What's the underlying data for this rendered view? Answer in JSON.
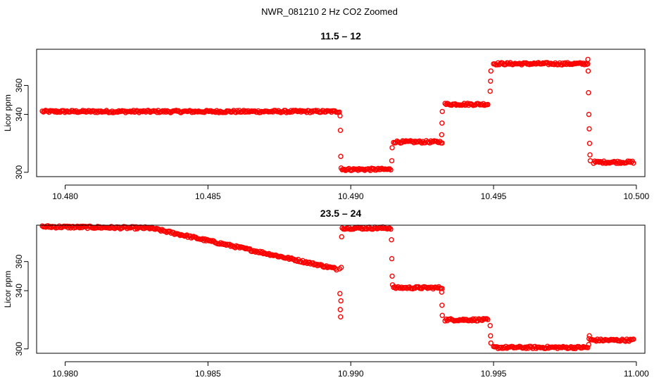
{
  "suptitle": "NWR_081210  2 Hz CO2 Zoomed",
  "colors": {
    "points": "#ff0000",
    "axes": "#000000",
    "background": "#ffffff"
  },
  "chart_data": [
    {
      "type": "scatter",
      "title": "11.5 – 12",
      "ylabel": "Licor ppm",
      "xlim": [
        10.479,
        10.5003
      ],
      "ylim": [
        297,
        385
      ],
      "xticks": [
        10.48,
        10.485,
        10.49,
        10.495,
        10.5
      ],
      "xtick_labels": [
        "10.480",
        "10.485",
        "10.490",
        "10.495",
        "10.500"
      ],
      "yticks": [
        300,
        340,
        360
      ],
      "ytick_labels": [
        "300",
        "340",
        "360"
      ],
      "marker": "open-circle",
      "segments": [
        {
          "x0": 10.4792,
          "x1": 10.4896,
          "y0": 342,
          "y1": 342
        },
        {
          "x0": 10.4897,
          "x1": 10.4914,
          "y0": 302,
          "y1": 302
        },
        {
          "x0": 10.4915,
          "x1": 10.4932,
          "y0": 321,
          "y1": 321
        },
        {
          "x0": 10.4933,
          "x1": 10.4948,
          "y0": 347,
          "y1": 347
        },
        {
          "x0": 10.495,
          "x1": 10.4983,
          "y0": 375,
          "y1": 375
        },
        {
          "x0": 10.4985,
          "x1": 10.4999,
          "y0": 307,
          "y1": 307
        }
      ],
      "transitions": [
        {
          "x": 10.48965,
          "values": [
            339,
            329,
            311,
            303
          ]
        },
        {
          "x": 10.49145,
          "values": [
            308,
            317
          ]
        },
        {
          "x": 10.4932,
          "values": [
            326,
            334,
            342
          ]
        },
        {
          "x": 10.4949,
          "values": [
            356,
            363,
            370
          ]
        },
        {
          "x": 10.49835,
          "values": [
            378,
            370,
            355,
            340,
            330,
            320,
            312,
            308
          ]
        }
      ]
    },
    {
      "type": "scatter",
      "title": "23.5 – 24",
      "ylabel": "Licor ppm",
      "xlim": [
        10.979,
        11.0003
      ],
      "ylim": [
        297,
        385
      ],
      "xticks": [
        10.98,
        10.985,
        10.99,
        10.995,
        11.0
      ],
      "xtick_labels": [
        "10.980",
        "10.985",
        "10.990",
        "10.995",
        "11.000"
      ],
      "yticks": [
        300,
        340,
        360
      ],
      "ytick_labels": [
        "300",
        "340",
        "360"
      ],
      "marker": "open-circle",
      "segments": [
        {
          "x0": 10.9792,
          "x1": 10.983,
          "y0": 384,
          "y1": 383
        },
        {
          "x0": 10.983,
          "x1": 10.9895,
          "y0": 383,
          "y1": 355
        },
        {
          "x0": 10.9897,
          "x1": 10.9914,
          "y0": 383,
          "y1": 383
        },
        {
          "x0": 10.9915,
          "x1": 10.9932,
          "y0": 342,
          "y1": 342
        },
        {
          "x0": 10.9933,
          "x1": 10.9948,
          "y0": 320,
          "y1": 320
        },
        {
          "x0": 10.995,
          "x1": 10.9983,
          "y0": 301,
          "y1": 301
        },
        {
          "x0": 10.9984,
          "x1": 10.9999,
          "y0": 306,
          "y1": 306
        }
      ],
      "transitions": [
        {
          "x": 10.98965,
          "values": [
            355,
            338,
            327,
            322,
            333,
            356,
            377
          ]
        },
        {
          "x": 10.99145,
          "values": [
            375,
            362,
            350,
            344
          ]
        },
        {
          "x": 10.9932,
          "values": [
            339,
            330,
            323
          ]
        },
        {
          "x": 10.9949,
          "values": [
            316,
            309,
            304
          ]
        },
        {
          "x": 10.99835,
          "values": [
            303,
            307,
            309
          ]
        }
      ]
    }
  ]
}
